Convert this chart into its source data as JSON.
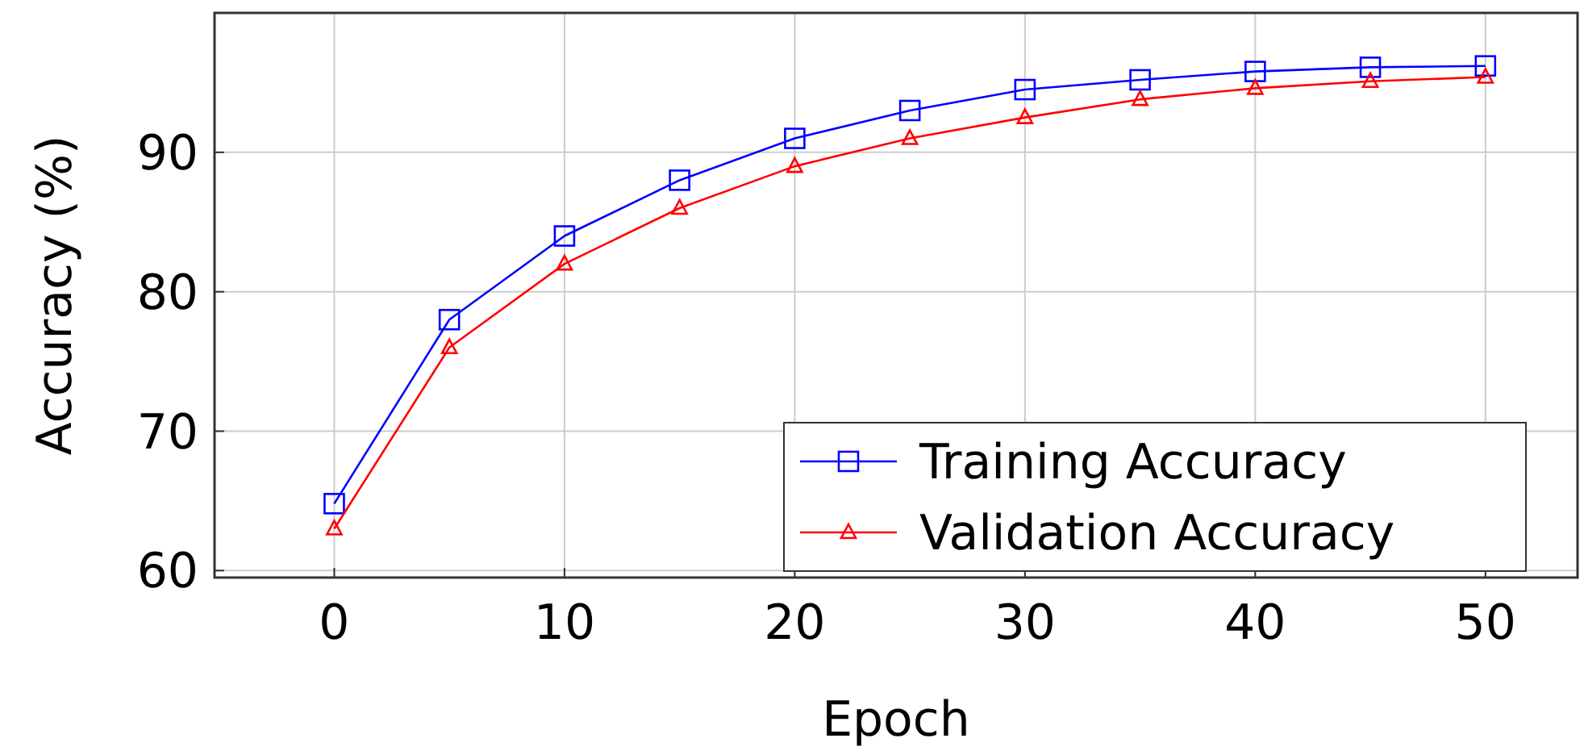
{
  "chart_data": {
    "type": "line",
    "xlabel": "Epoch",
    "ylabel": "Accuracy (%)",
    "x": [
      0,
      5,
      10,
      15,
      20,
      25,
      30,
      35,
      40,
      45,
      50
    ],
    "xlim": [
      -5.2,
      54
    ],
    "xticks": [
      0,
      10,
      20,
      30,
      40,
      50
    ],
    "ylim": [
      59.5,
      100
    ],
    "yticks": [
      60,
      70,
      80,
      90
    ],
    "grid": true,
    "legend": "bottom right",
    "series": [
      {
        "name": "Training Accuracy",
        "color": "#0000ff",
        "marker": "square",
        "values": [
          64.8,
          78,
          84,
          88,
          91,
          93,
          94.5,
          95.2,
          95.8,
          96.1,
          96.2
        ]
      },
      {
        "name": "Validation Accuracy",
        "color": "#ff0000",
        "marker": "triangle",
        "values": [
          63,
          76,
          82,
          86,
          89,
          91,
          92.5,
          93.8,
          94.6,
          95.1,
          95.4
        ]
      }
    ]
  }
}
